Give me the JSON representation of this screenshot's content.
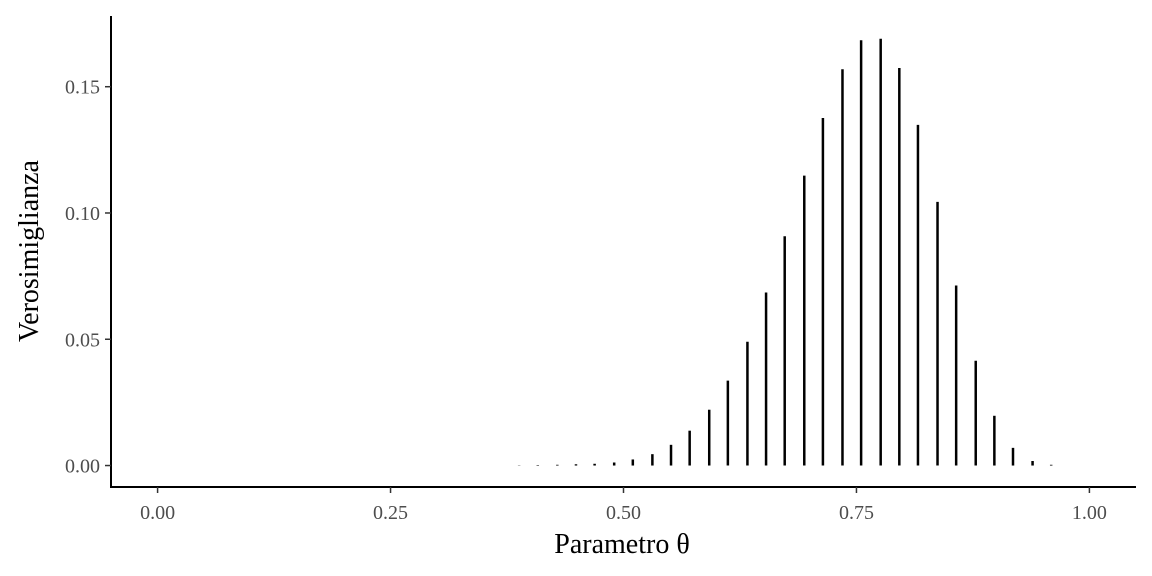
{
  "chart_data": {
    "type": "bar",
    "xlabel": "Parametro θ",
    "ylabel": "Verosimiglianza",
    "xlim": [
      -0.05,
      1.05
    ],
    "ylim": [
      -0.0085,
      0.178
    ],
    "x_ticks": [
      0.0,
      0.25,
      0.5,
      0.75,
      1.0
    ],
    "x_tick_labels": [
      "0.00",
      "0.25",
      "0.50",
      "0.75",
      "1.00"
    ],
    "y_ticks": [
      0.0,
      0.05,
      0.1,
      0.15
    ],
    "y_tick_labels": [
      "0.00",
      "0.05",
      "0.10",
      "0.15"
    ],
    "grid": false,
    "x": [
      0.388,
      0.408,
      0.429,
      0.449,
      0.469,
      0.49,
      0.51,
      0.531,
      0.551,
      0.571,
      0.592,
      0.612,
      0.633,
      0.653,
      0.673,
      0.694,
      0.714,
      0.735,
      0.755,
      0.776,
      0.796,
      0.816,
      0.837,
      0.857,
      0.878,
      0.898,
      0.918,
      0.939,
      0.959
    ],
    "values": [
      0.0001,
      0.0002,
      0.0003,
      0.0005,
      0.0007,
      0.0012,
      0.0024,
      0.0045,
      0.0082,
      0.0138,
      0.0221,
      0.0336,
      0.049,
      0.0685,
      0.0908,
      0.1148,
      0.1376,
      0.1569,
      0.1684,
      0.169,
      0.1574,
      0.1349,
      0.1044,
      0.0713,
      0.0415,
      0.0197,
      0.007,
      0.0018,
      0.0003
    ],
    "colors": {
      "line": "#000000",
      "tick_text": "#4d4d4d",
      "axis": "#000000"
    }
  }
}
